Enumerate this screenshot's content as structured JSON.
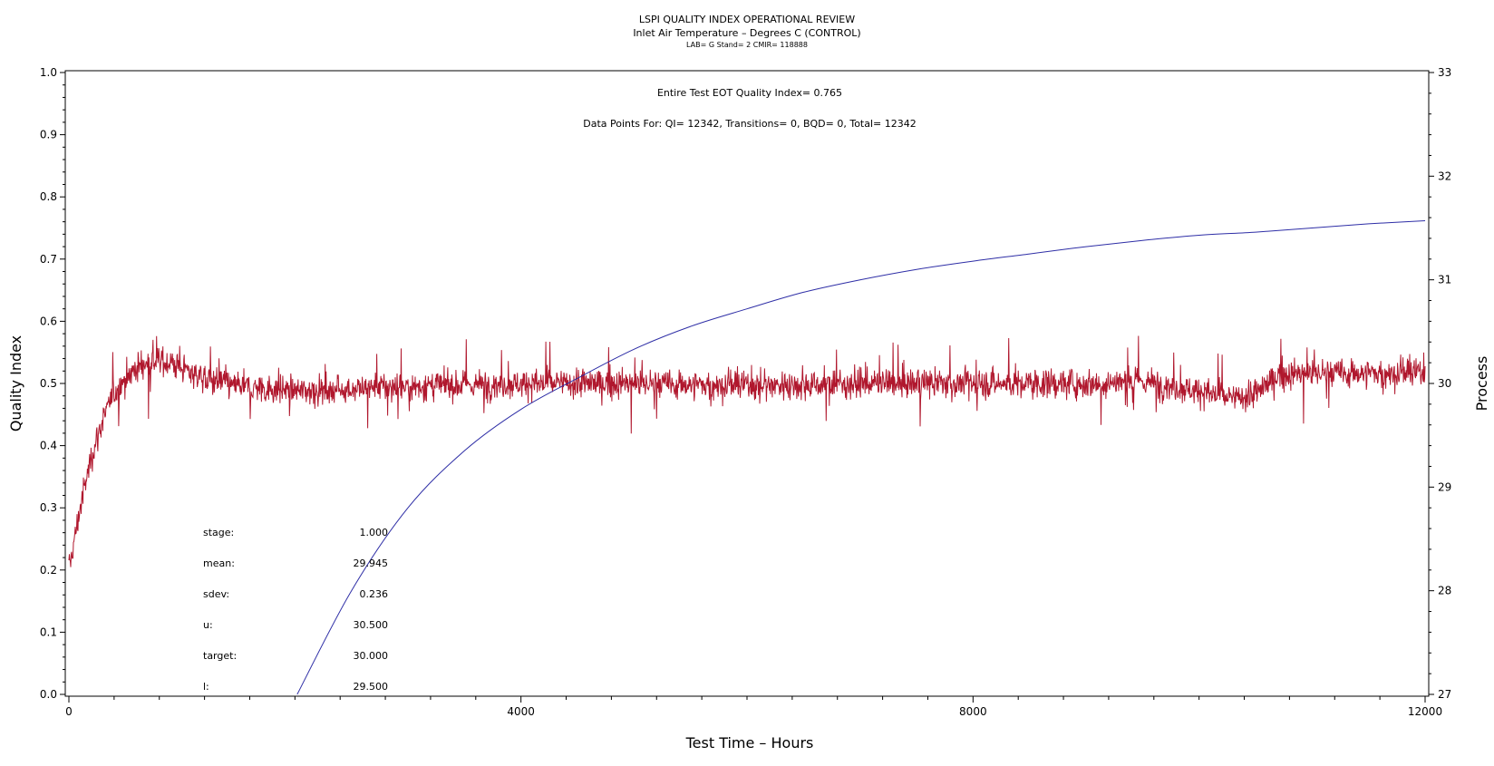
{
  "chart_data": {
    "type": "line",
    "title": "LSPI QUALITY INDEX OPERATIONAL REVIEW",
    "subtitle": "Inlet Air Temperature – Degrees C (CONTROL)",
    "subtitle2": "LAB= G Stand= 2 CMIR= 118888",
    "xlabel": "Test Time – Hours",
    "ylabel": "Quality Index",
    "y2label": "Process",
    "xlim": [
      0,
      12000
    ],
    "ylim": [
      0,
      1
    ],
    "y2lim": [
      27,
      33
    ],
    "x_ticks": [
      "0",
      "4000",
      "8000",
      "12000"
    ],
    "y_ticks": [
      "0.0",
      "0.1",
      "0.2",
      "0.3",
      "0.4",
      "0.5",
      "0.6",
      "0.7",
      "0.8",
      "0.9",
      "1.0"
    ],
    "y2_ticks": [
      "27",
      "28",
      "29",
      "30",
      "31",
      "32",
      "33"
    ],
    "annotations": {
      "eot": "Entire Test EOT Quality Index=   0.765",
      "points": "Data Points For: QI= 12342, Transitions=     0, BQD=     0, Total= 12342"
    },
    "stats": [
      {
        "label": "stage:",
        "value": "1.000"
      },
      {
        "label": "mean:",
        "value": "29.945"
      },
      {
        "label": "sdev:",
        "value": "0.236"
      },
      {
        "label": "u:",
        "value": "30.500"
      },
      {
        "label": "target:",
        "value": "30.000"
      },
      {
        "label": "l:",
        "value": "29.500"
      }
    ],
    "series": [
      {
        "axis": "right",
        "color": "#b0172d",
        "trend_x": [
          0,
          100,
          200,
          300,
          400,
          500,
          600,
          700,
          800,
          900,
          1000,
          1200,
          1500,
          2000,
          2500,
          3000,
          4000,
          5000,
          6000,
          7000,
          8000,
          9000,
          9500,
          10000,
          10300,
          10500,
          10700,
          11000,
          11500,
          12000
        ],
        "trend_y": [
          28.2,
          28.8,
          29.3,
          29.65,
          29.9,
          30.05,
          30.15,
          30.2,
          30.22,
          30.2,
          30.15,
          30.05,
          29.97,
          29.93,
          29.95,
          29.97,
          30.0,
          30.0,
          29.98,
          30.0,
          30.0,
          30.0,
          30.02,
          29.93,
          29.85,
          29.9,
          30.08,
          30.1,
          30.1,
          30.1
        ],
        "noise_sdev": 0.1
      },
      {
        "axis": "right",
        "color": "#2e2ea6",
        "x": [
          2020,
          2500,
          3000,
          3500,
          4000,
          4500,
          5000,
          5500,
          6000,
          6500,
          7000,
          7500,
          8000,
          8500,
          9000,
          9500,
          10000,
          10500,
          11000,
          11500,
          12000
        ],
        "y": [
          27.0,
          28.0,
          28.8,
          29.35,
          29.75,
          30.05,
          30.33,
          30.55,
          30.72,
          30.88,
          31.0,
          31.1,
          31.18,
          31.25,
          31.32,
          31.38,
          31.43,
          31.46,
          31.5,
          31.54,
          31.57
        ]
      }
    ]
  }
}
